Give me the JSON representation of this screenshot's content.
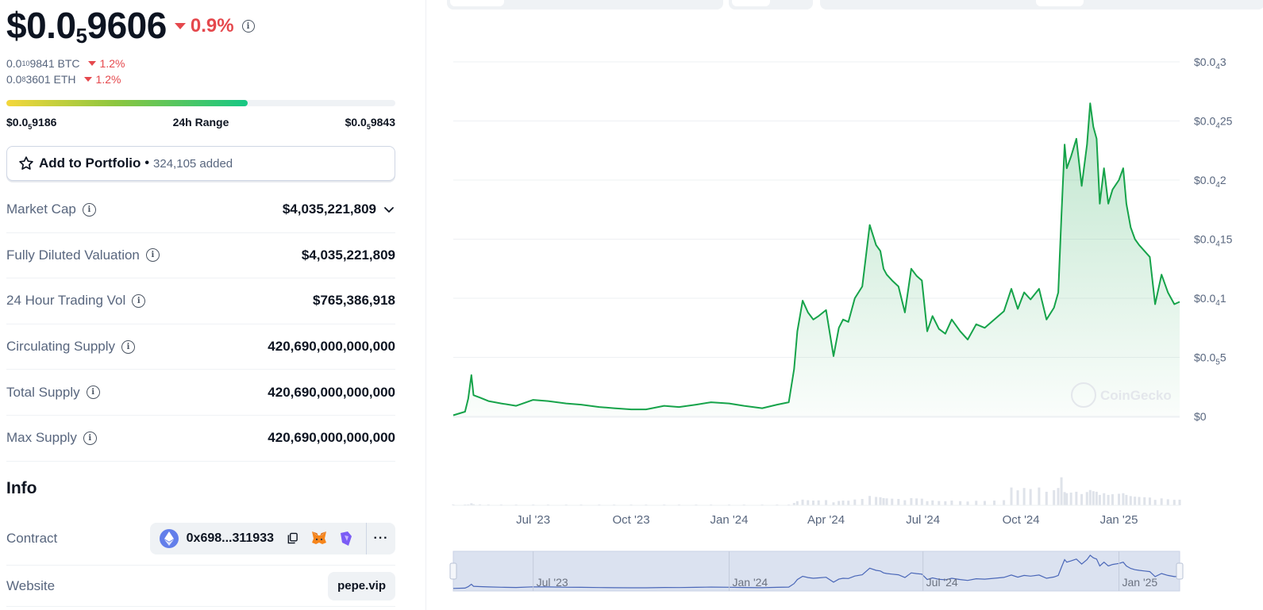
{
  "price": {
    "main_prefix": "$0.0",
    "main_sub": "5",
    "main_rest": "9606",
    "change": "0.9%",
    "btc_prefix": "0.0",
    "btc_sub": "10",
    "btc_rest": "9841 BTC",
    "btc_change": "1.2%",
    "eth_prefix": "0.0",
    "eth_sub": "8",
    "eth_rest": "3601 ETH",
    "eth_change": "1.2%"
  },
  "range": {
    "low_prefix": "$0.0",
    "low_sub": "5",
    "low_rest": "9186",
    "label": "24h Range",
    "high_prefix": "$0.0",
    "high_sub": "5",
    "high_rest": "9843",
    "position": 0.62
  },
  "portfolio": {
    "label": "Add to Portfolio",
    "separator": "•",
    "count": "324,105 added"
  },
  "stats": [
    {
      "label": "Market Cap",
      "value": "$4,035,221,809",
      "expandable": true
    },
    {
      "label": "Fully Diluted Valuation",
      "value": "$4,035,221,809"
    },
    {
      "label": "24 Hour Trading Vol",
      "value": "$765,386,918"
    },
    {
      "label": "Circulating Supply",
      "value": "420,690,000,000,000"
    },
    {
      "label": "Total Supply",
      "value": "420,690,000,000,000"
    },
    {
      "label": "Max Supply",
      "value": "420,690,000,000,000"
    }
  ],
  "info": {
    "title": "Info",
    "contract_label": "Contract",
    "contract_address": "0x698...311933",
    "more_label": "···",
    "website_label": "Website",
    "website_value": "pepe.vip"
  },
  "chart_data": {
    "type": "area",
    "title": "",
    "xlabel": "",
    "ylabel": "",
    "y_tick_labels": [
      {
        "prefix": "$0",
        "sub": "",
        "rest": ""
      },
      {
        "prefix": "$0.0",
        "sub": "5",
        "rest": "5"
      },
      {
        "prefix": "$0.0",
        "sub": "4",
        "rest": "1"
      },
      {
        "prefix": "$0.0",
        "sub": "4",
        "rest": "15"
      },
      {
        "prefix": "$0.0",
        "sub": "4",
        "rest": "2"
      },
      {
        "prefix": "$0.0",
        "sub": "4",
        "rest": "25"
      },
      {
        "prefix": "$0.0",
        "sub": "4",
        "rest": "3"
      }
    ],
    "y_ticks": [
      0,
      5e-06,
      1e-05,
      1.5e-05,
      2e-05,
      2.5e-05,
      3e-05
    ],
    "ylim": [
      0,
      3e-05
    ],
    "x_tick_labels": [
      "Jul '23",
      "Oct '23",
      "Jan '24",
      "Apr '24",
      "Jul '24",
      "Oct '24",
      "Jan '25"
    ],
    "x_tick_dates": [
      "2023-07-01",
      "2023-10-01",
      "2024-01-01",
      "2024-04-01",
      "2024-07-01",
      "2024-10-01",
      "2025-01-01"
    ],
    "x_range": [
      "2023-04-17",
      "2025-02-27"
    ],
    "series": [
      {
        "color": "#16a34a",
        "x": [
          "2023-04-17",
          "2023-04-28",
          "2023-05-01",
          "2023-05-04",
          "2023-05-06",
          "2023-05-12",
          "2023-05-20",
          "2023-06-01",
          "2023-06-15",
          "2023-07-01",
          "2023-07-15",
          "2023-08-01",
          "2023-08-15",
          "2023-09-01",
          "2023-09-15",
          "2023-10-01",
          "2023-10-15",
          "2023-11-01",
          "2023-11-15",
          "2023-12-01",
          "2023-12-15",
          "2024-01-01",
          "2024-01-15",
          "2024-02-01",
          "2024-02-15",
          "2024-02-26",
          "2024-03-02",
          "2024-03-05",
          "2024-03-10",
          "2024-03-15",
          "2024-03-20",
          "2024-03-25",
          "2024-04-01",
          "2024-04-08",
          "2024-04-13",
          "2024-04-17",
          "2024-04-22",
          "2024-04-28",
          "2024-05-05",
          "2024-05-12",
          "2024-05-18",
          "2024-05-22",
          "2024-05-25",
          "2024-05-28",
          "2024-06-02",
          "2024-06-08",
          "2024-06-14",
          "2024-06-20",
          "2024-06-25",
          "2024-06-30",
          "2024-07-05",
          "2024-07-10",
          "2024-07-16",
          "2024-07-22",
          "2024-07-28",
          "2024-08-05",
          "2024-08-12",
          "2024-08-20",
          "2024-08-28",
          "2024-09-06",
          "2024-09-15",
          "2024-09-22",
          "2024-09-28",
          "2024-10-04",
          "2024-10-10",
          "2024-10-18",
          "2024-10-25",
          "2024-11-01",
          "2024-11-05",
          "2024-11-08",
          "2024-11-11",
          "2024-11-13",
          "2024-11-17",
          "2024-11-22",
          "2024-11-27",
          "2024-12-02",
          "2024-12-05",
          "2024-12-08",
          "2024-12-11",
          "2024-12-14",
          "2024-12-18",
          "2024-12-22",
          "2024-12-26",
          "2025-01-01",
          "2025-01-05",
          "2025-01-08",
          "2025-01-12",
          "2025-01-16",
          "2025-01-20",
          "2025-01-25",
          "2025-01-30",
          "2025-02-04",
          "2025-02-10",
          "2025-02-16",
          "2025-02-22",
          "2025-02-27"
        ],
        "values": [
          1e-07,
          4e-07,
          1.5e-06,
          3.5e-06,
          1.8e-06,
          1.6e-06,
          1.3e-06,
          1.1e-06,
          9e-07,
          1.4e-06,
          1.3e-06,
          1.1e-06,
          1e-06,
          8e-07,
          7e-07,
          6e-07,
          6e-07,
          9e-07,
          8e-07,
          1e-06,
          1.2e-06,
          1.1e-06,
          9e-07,
          7e-07,
          1e-06,
          1.2e-06,
          4e-06,
          7.2e-06,
          9.8e-06,
          8.8e-06,
          8.2e-06,
          8.5e-06,
          9e-06,
          5.1e-06,
          7.5e-06,
          8.2e-06,
          8e-06,
          1e-05,
          1.1e-05,
          1.62e-05,
          1.45e-05,
          1.4e-05,
          1.25e-05,
          1.2e-05,
          1.15e-05,
          1.1e-05,
          8.8e-06,
          1.25e-05,
          1.19e-05,
          1.15e-05,
          7.2e-06,
          8.5e-06,
          7.4e-06,
          7e-06,
          8.2e-06,
          7.2e-06,
          6.5e-06,
          7.8e-06,
          7.5e-06,
          8.2e-06,
          8.9e-06,
          1.08e-05,
          9.1e-06,
          1.05e-05,
          9.9e-06,
          1.08e-05,
          8.2e-06,
          9.2e-06,
          1.05e-05,
          1.7e-05,
          2.3e-05,
          2.1e-05,
          2.2e-05,
          2.35e-05,
          1.95e-05,
          2.3e-05,
          2.65e-05,
          2.45e-05,
          2.35e-05,
          1.8e-05,
          2.1e-05,
          1.8e-05,
          1.92e-05,
          2e-05,
          2.1e-05,
          1.8e-05,
          1.6e-05,
          1.5e-05,
          1.45e-05,
          1.4e-05,
          1.35e-05,
          9.5e-06,
          1.2e-05,
          1.05e-05,
          9.5e-06,
          9.7e-06
        ]
      }
    ],
    "volume_note": "volume bars below price area",
    "watermark": "CoinGecko",
    "navigator_labels": [
      "Jul '23",
      "Jan '24",
      "Jul '24",
      "Jan '25"
    ]
  }
}
